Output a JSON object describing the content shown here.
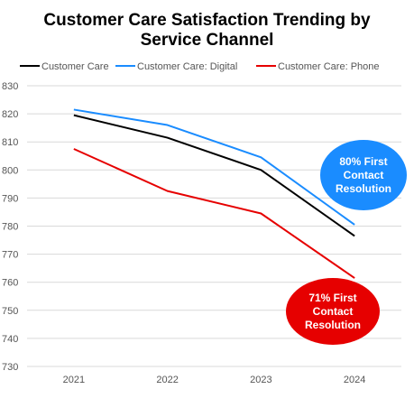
{
  "chart_data": {
    "type": "line",
    "title_line1": "Customer Care Satisfaction Trending by",
    "title_line2": "Service Channel",
    "categories": [
      "2021",
      "2022",
      "2023",
      "2024"
    ],
    "ylim": [
      730,
      830
    ],
    "yticks": [
      830,
      820,
      810,
      800,
      790,
      780,
      770,
      760,
      750,
      740,
      730
    ],
    "grid": true,
    "legend_position": "top",
    "series": [
      {
        "name": "Customer Care",
        "color": "#000000",
        "values": [
          819.5,
          811.5,
          800,
          776.5
        ]
      },
      {
        "name": "Customer Care: Digital",
        "color": "#1a8cff",
        "values": [
          821.5,
          816,
          804.5,
          780.5
        ]
      },
      {
        "name": "Customer Care: Phone",
        "color": "#e60000",
        "values": [
          807.5,
          792.5,
          784.5,
          761.5
        ]
      }
    ],
    "annotations": [
      {
        "lines": [
          "80% First",
          "Contact",
          "Resolution"
        ],
        "color": "#1a8cff"
      },
      {
        "lines": [
          "71% First",
          "Contact",
          "Resolution"
        ],
        "color": "#e60000"
      }
    ]
  }
}
